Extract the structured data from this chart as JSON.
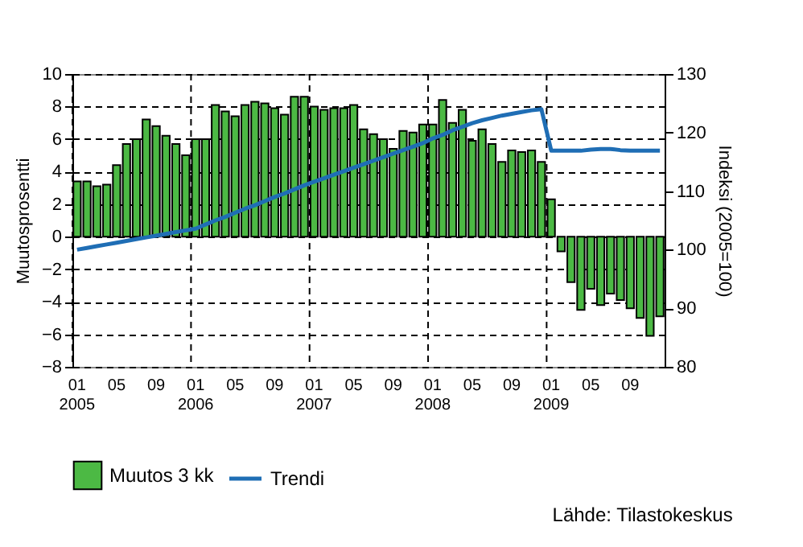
{
  "chart_data": {
    "type": "bar",
    "categories": [
      "01\n2005",
      null,
      null,
      null,
      "05",
      null,
      null,
      null,
      "09",
      null,
      null,
      null,
      "01\n2006",
      null,
      null,
      null,
      "05",
      null,
      null,
      null,
      "09",
      null,
      null,
      null,
      "01\n2007",
      null,
      null,
      null,
      "05",
      null,
      null,
      null,
      "09",
      null,
      null,
      null,
      "01\n2008",
      null,
      null,
      null,
      "05",
      null,
      null,
      null,
      "09",
      null,
      null,
      null,
      "01\n2009",
      null,
      null,
      null,
      "05",
      null,
      null,
      null,
      "09",
      null,
      null,
      null
    ],
    "series": [
      {
        "name": "Muutos 3 kk",
        "color": "#4cb944",
        "values": [
          3.4,
          3.4,
          3.1,
          3.2,
          4.4,
          5.7,
          6.0,
          7.2,
          6.8,
          6.2,
          5.7,
          5.0,
          6.0,
          6.0,
          8.1,
          7.7,
          7.4,
          8.1,
          8.3,
          8.2,
          7.9,
          7.5,
          8.6,
          8.6,
          8.0,
          7.8,
          7.9,
          7.9,
          8.1,
          6.6,
          6.3,
          6.0,
          5.4,
          6.5,
          6.4,
          6.9,
          6.9,
          8.4,
          7.0,
          7.8,
          5.9,
          6.6,
          5.7,
          4.6,
          5.3,
          5.2,
          5.3,
          4.6,
          2.3,
          -0.9,
          -2.8,
          -4.5,
          -3.2,
          -4.2,
          -3.5,
          -3.9,
          -4.4,
          -5.0,
          -6.1,
          -4.9
        ]
      },
      {
        "name": "Trendi",
        "type": "line",
        "axis": "y2",
        "color": "#1f6eb5",
        "values": [
          100.0,
          100.3,
          100.6,
          100.9,
          101.2,
          101.5,
          101.8,
          102.1,
          102.4,
          102.7,
          103.0,
          103.3,
          103.6,
          104.3,
          105.0,
          105.6,
          106.3,
          107.0,
          107.6,
          108.3,
          109.0,
          109.6,
          110.3,
          111.0,
          111.6,
          112.2,
          112.8,
          113.4,
          114.0,
          114.6,
          115.2,
          115.8,
          116.4,
          117.0,
          117.6,
          118.2,
          119.0,
          119.6,
          120.4,
          121.0,
          121.6,
          122.1,
          122.5,
          122.9,
          123.2,
          123.5,
          123.8,
          124.0,
          116.9,
          116.9,
          116.9,
          116.9,
          117.1,
          117.2,
          117.2,
          117.0,
          116.9,
          116.9,
          116.9,
          116.9
        ]
      }
    ],
    "ylabel": "Muutosprosentti",
    "y2label": "Indeksi (2005=100)",
    "ylim": [
      -8,
      10
    ],
    "yticks": [
      -8,
      -6,
      -4,
      -2,
      0,
      2,
      4,
      6,
      8,
      10
    ],
    "y2lim": [
      80,
      130
    ],
    "y2ticks": [
      80,
      90,
      100,
      110,
      120,
      130
    ],
    "grid": true,
    "legend": "bottom",
    "annotations": [
      "Lähde: Tilastokeskus"
    ]
  }
}
